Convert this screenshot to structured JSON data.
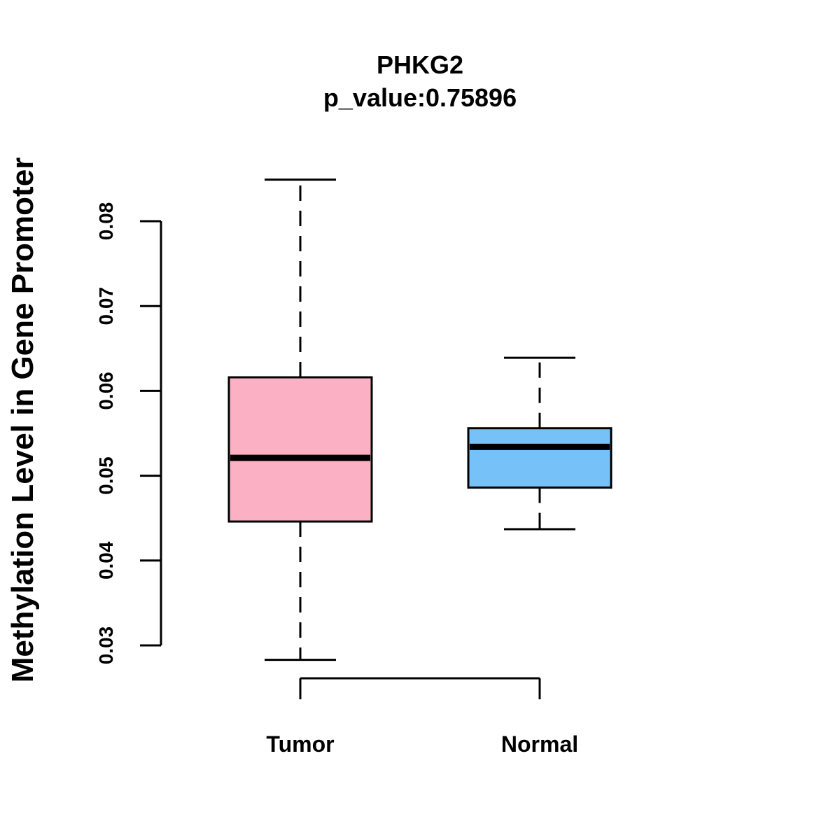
{
  "chart_data": {
    "type": "boxplot",
    "title": "PHKG2",
    "subtitle": "p_value:0.75896",
    "xlabel": "",
    "ylabel": "Methylation Level in Gene Promoter",
    "yticks": [
      "0.03",
      "0.04",
      "0.05",
      "0.06",
      "0.07",
      "0.08"
    ],
    "ytick_values": [
      0.03,
      0.04,
      0.05,
      0.06,
      0.07,
      0.08
    ],
    "ylim": [
      0.03,
      0.08
    ],
    "categories": [
      "Tumor",
      "Normal"
    ],
    "series": [
      {
        "name": "Tumor",
        "color": "#FBB1C3",
        "whisker_low": 0.0283,
        "q1": 0.0446,
        "median": 0.0521,
        "q3": 0.0616,
        "whisker_high": 0.0849
      },
      {
        "name": "Normal",
        "color": "#76C1F8",
        "whisker_low": 0.0437,
        "q1": 0.0486,
        "median": 0.0534,
        "q3": 0.0556,
        "whisker_high": 0.0639
      }
    ],
    "grid": false,
    "legend": "none"
  }
}
